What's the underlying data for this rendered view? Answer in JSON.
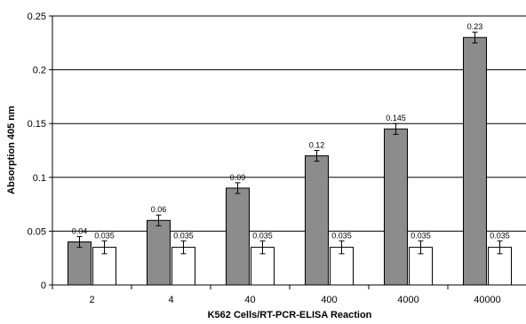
{
  "chart_data": {
    "type": "bar",
    "title": "",
    "xlabel": "K562 Cells/RT-PCR-ELISA Reaction",
    "ylabel": "Absorption 405 nm",
    "categories": [
      "2",
      "4",
      "40",
      "400",
      "4000",
      "40000"
    ],
    "ylim": [
      0,
      0.25
    ],
    "yticks": [
      0,
      0.05,
      0.1,
      0.15,
      0.2,
      0.25
    ],
    "ytick_labels": [
      "0",
      "0.05",
      "0.1",
      "0.15",
      "0.2",
      "0.25"
    ],
    "grid": true,
    "legend": "none",
    "series": [
      {
        "values": [
          0.04,
          0.06,
          0.09,
          0.12,
          0.145,
          0.23
        ],
        "labels": [
          "0.04",
          "0.06",
          "0.09",
          "0.12",
          "0.145",
          "0.23"
        ],
        "errors": [
          0.005,
          0.005,
          0.005,
          0.005,
          0.005,
          0.005
        ],
        "fill": "#8c8c8c"
      },
      {
        "values": [
          0.035,
          0.035,
          0.035,
          0.035,
          0.035,
          0.035
        ],
        "labels": [
          "0.035",
          "0.035",
          "0.035",
          "0.035",
          "0.035",
          "0.035"
        ],
        "errors": [
          0.006,
          0.006,
          0.006,
          0.006,
          0.006,
          0.006
        ],
        "fill": "#ffffff"
      }
    ]
  }
}
